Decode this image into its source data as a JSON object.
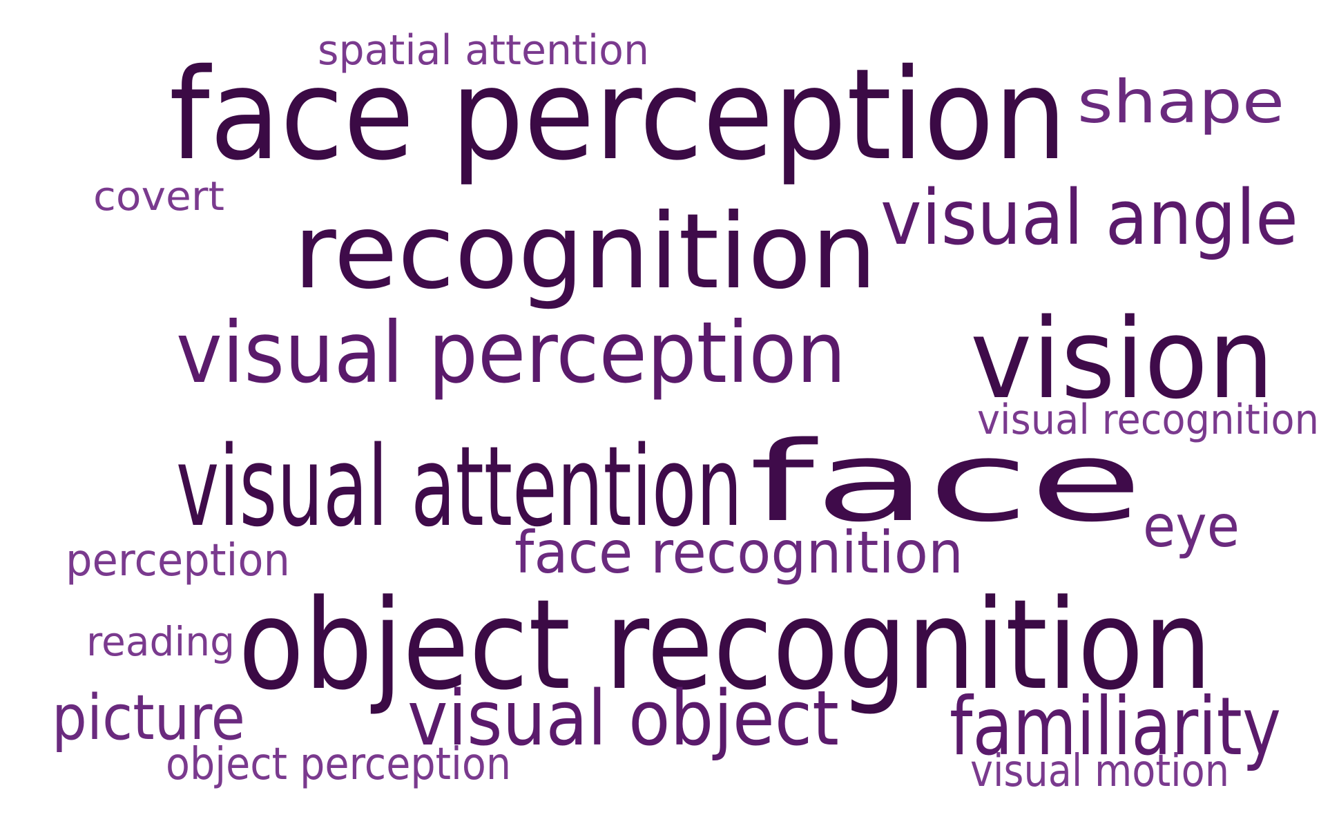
{
  "word_cloud": {
    "words": [
      {
        "id": "w-face-perception",
        "text": "face perception",
        "weight": 10,
        "color": "#3b0a45"
      },
      {
        "id": "w-object-recognition",
        "text": "object recognition",
        "weight": 10,
        "color": "#3b0a45"
      },
      {
        "id": "w-visual-attention",
        "text": "visual attention",
        "weight": 9,
        "color": "#3f0b4a"
      },
      {
        "id": "w-face",
        "text": "face",
        "weight": 9,
        "color": "#3f0b4a"
      },
      {
        "id": "w-recognition",
        "text": "recognition",
        "weight": 9,
        "color": "#3f0b4a"
      },
      {
        "id": "w-vision",
        "text": "vision",
        "weight": 9,
        "color": "#3f0b4a"
      },
      {
        "id": "w-visual-perception",
        "text": "visual perception",
        "weight": 7,
        "color": "#5a1a6b"
      },
      {
        "id": "w-visual-angle",
        "text": "visual angle",
        "weight": 6,
        "color": "#5a1a6b"
      },
      {
        "id": "w-visual-object",
        "text": "visual object",
        "weight": 6,
        "color": "#5a1a6b"
      },
      {
        "id": "w-familiarity",
        "text": "familiarity",
        "weight": 6,
        "color": "#5a1a6b"
      },
      {
        "id": "w-shape",
        "text": "shape",
        "weight": 5,
        "color": "#6a2a7e"
      },
      {
        "id": "w-picture",
        "text": "picture",
        "weight": 5,
        "color": "#6a2a7e"
      },
      {
        "id": "w-face-recognition",
        "text": "face recognition",
        "weight": 5,
        "color": "#6a2a7e"
      },
      {
        "id": "w-eye",
        "text": "eye",
        "weight": 4,
        "color": "#6a2a7e"
      },
      {
        "id": "w-spatial-attention",
        "text": "spatial attention",
        "weight": 3,
        "color": "#7a3a8e"
      },
      {
        "id": "w-covert",
        "text": "covert",
        "weight": 3,
        "color": "#7a3a8e"
      },
      {
        "id": "w-visual-recognition",
        "text": "visual recognition",
        "weight": 3,
        "color": "#7a3a8e"
      },
      {
        "id": "w-perception",
        "text": "perception",
        "weight": 3,
        "color": "#7a3a8e"
      },
      {
        "id": "w-reading",
        "text": "reading",
        "weight": 3,
        "color": "#7a3a8e"
      },
      {
        "id": "w-object-perception",
        "text": "object perception",
        "weight": 3,
        "color": "#7a3a8e"
      },
      {
        "id": "w-visual-motion",
        "text": "visual motion",
        "weight": 3,
        "color": "#7a3a8e"
      }
    ]
  }
}
